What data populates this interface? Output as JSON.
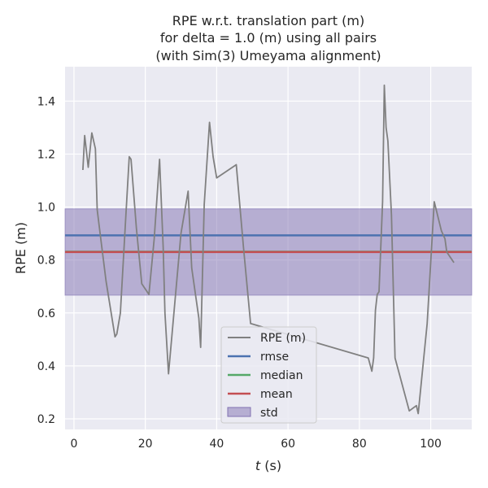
{
  "chart_data": {
    "type": "line",
    "title_lines": [
      "RPE w.r.t. translation part (m)",
      "for delta = 1.0 (m) using all pairs",
      "(with Sim(3) Umeyama alignment)"
    ],
    "xlabel_var": "t",
    "xlabel_unit": " (s)",
    "ylabel": "RPE (m)",
    "xlim": [
      -2.5,
      111.5
    ],
    "ylim": [
      0.16,
      1.53
    ],
    "xticks": [
      0,
      20,
      40,
      60,
      80,
      100
    ],
    "yticks": [
      0.2,
      0.4,
      0.6,
      0.8,
      1.0,
      1.2,
      1.4
    ],
    "xtick_labels": [
      "0",
      "20",
      "40",
      "60",
      "80",
      "100"
    ],
    "ytick_labels": [
      "0.2",
      "0.4",
      "0.6",
      "0.8",
      "1.0",
      "1.2",
      "1.4"
    ],
    "grid": true,
    "legend_position": "lower-center",
    "colors": {
      "background": "#eaeaf2",
      "grid": "#ffffff",
      "rpe": "#808080",
      "rmse": "#4c72b0",
      "median": "#55a868",
      "mean": "#c44e52",
      "std_fill": "#8172b2"
    },
    "series": [
      {
        "name": "RPE (m)",
        "x": [
          2.5,
          3.0,
          4.0,
          5.0,
          6.0,
          6.5,
          7.5,
          9.0,
          11.5,
          12.0,
          13.0,
          14.5,
          15.5,
          16.0,
          17.5,
          19.0,
          21.0,
          22.5,
          24.0,
          25.0,
          25.5,
          26.5,
          30.0,
          32.0,
          33.0,
          35.0,
          35.5,
          36.5,
          38.0,
          39.0,
          40.0,
          45.5,
          47.5,
          49.5,
          82.5,
          83.5,
          84.0,
          84.5,
          85.0,
          85.5,
          86.5,
          87.0,
          87.5,
          88.0,
          89.0,
          90.0,
          94.0,
          96.0,
          96.5,
          99.0,
          101.0,
          103.0,
          104.0,
          104.5,
          106.5
        ],
        "y": [
          1.14,
          1.27,
          1.15,
          1.28,
          1.22,
          0.99,
          0.88,
          0.72,
          0.51,
          0.52,
          0.6,
          0.96,
          1.19,
          1.18,
          0.92,
          0.71,
          0.67,
          0.88,
          1.18,
          0.85,
          0.6,
          0.37,
          0.9,
          1.06,
          0.77,
          0.58,
          0.47,
          1.01,
          1.32,
          1.19,
          1.11,
          1.16,
          0.85,
          0.56,
          0.43,
          0.38,
          0.43,
          0.61,
          0.67,
          0.68,
          1.02,
          1.46,
          1.3,
          1.25,
          0.97,
          0.43,
          0.23,
          0.25,
          0.22,
          0.56,
          1.02,
          0.91,
          0.88,
          0.83,
          0.79
        ]
      }
    ],
    "stats": {
      "rmse": 0.893,
      "median": 0.831,
      "mean": 0.83,
      "std_low": 0.667,
      "std_high": 0.993
    },
    "legend": {
      "rpe": "RPE (m)",
      "rmse": "rmse",
      "median": "median",
      "mean": "mean",
      "std": "std"
    }
  }
}
